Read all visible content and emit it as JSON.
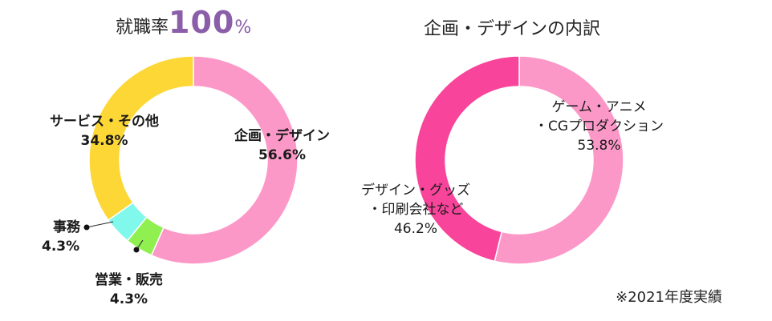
{
  "chart_data": [
    {
      "type": "pie",
      "donut": true,
      "title_prefix": "就職率",
      "title_value": "100",
      "title_suffix": "%",
      "slices": [
        {
          "label": "企画・デザイン",
          "value": 56.6,
          "value_label": "56.6%",
          "color": "#fc98c8"
        },
        {
          "label": "営業・販売",
          "value": 4.3,
          "value_label": "4.3%",
          "color": "#90f050"
        },
        {
          "label": "事務",
          "value": 4.3,
          "value_label": "4.3%",
          "color": "#80f8ec"
        },
        {
          "label": "サービス・その他",
          "value": 34.8,
          "value_label": "34.8%",
          "color": "#fcd735"
        }
      ]
    },
    {
      "type": "pie",
      "donut": true,
      "title": "企画・デザインの内訳",
      "slices": [
        {
          "label_line1": "ゲーム・アニメ",
          "label_line2": "・CGプロダクション",
          "value": 53.8,
          "value_label": "53.8%",
          "color": "#fc98c8"
        },
        {
          "label_line1": "デザイン・グッズ",
          "label_line2": "・印刷会社など",
          "value": 46.2,
          "value_label": "46.2%",
          "color": "#f9449b"
        }
      ]
    }
  ],
  "footnote": "※2021年度実績"
}
